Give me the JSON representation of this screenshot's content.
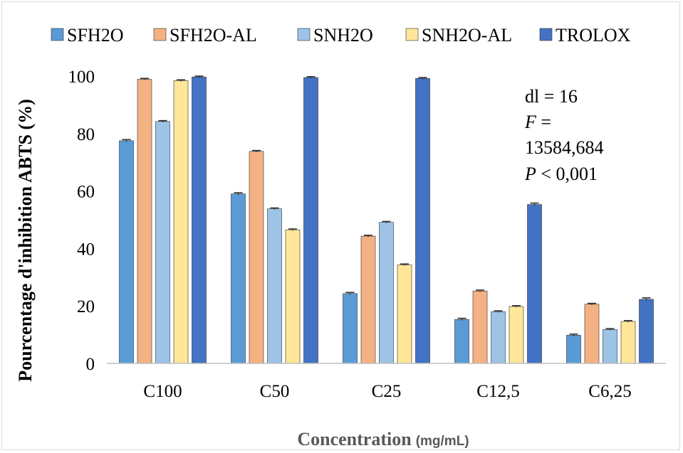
{
  "chart_data": {
    "type": "bar",
    "categories": [
      "C100",
      "C50",
      "C25",
      "C12,5",
      "C6,25"
    ],
    "series": [
      {
        "name": "SFH2O",
        "color": "#5b9bd5",
        "values": [
          77.5,
          59.0,
          24.3,
          15.3,
          9.8
        ],
        "errors": [
          0.4,
          0.4,
          0.4,
          0.4,
          0.4
        ]
      },
      {
        "name": "SFH2O-AL",
        "color": "#f4b183",
        "values": [
          98.9,
          73.8,
          44.3,
          25.2,
          20.6
        ],
        "errors": [
          0.3,
          0.3,
          0.3,
          0.3,
          0.3
        ]
      },
      {
        "name": "SNH2O",
        "color": "#9dc3e6",
        "values": [
          84.2,
          53.8,
          49.1,
          18.0,
          11.8
        ],
        "errors": [
          0.3,
          0.3,
          0.3,
          0.3,
          0.3
        ]
      },
      {
        "name": "SNH2O-AL",
        "color": "#ffe699",
        "values": [
          98.4,
          46.5,
          34.3,
          19.8,
          14.6
        ],
        "errors": [
          0.3,
          0.3,
          0.3,
          0.3,
          0.3
        ]
      },
      {
        "name": "TROLOX",
        "color": "#4472c4",
        "values": [
          99.7,
          99.5,
          99.2,
          55.3,
          22.3
        ],
        "errors": [
          0.3,
          0.3,
          0.3,
          0.5,
          0.5
        ]
      }
    ],
    "ylabel": "Pourcentage d'inhibition ABTS (%)",
    "xlabel": "Concentration",
    "xlabel_unit": "(mg/mL)",
    "ylim": [
      0,
      100
    ],
    "yticks": [
      0,
      20,
      40,
      60,
      80,
      100
    ],
    "grid": false,
    "legend_position": "top",
    "annotation": {
      "line1": "dl = 16",
      "line2_var": "F",
      "line2_rest": " =",
      "line3": "13584,684",
      "line4_var": "P",
      "line4_rest": " < 0,001"
    }
  }
}
